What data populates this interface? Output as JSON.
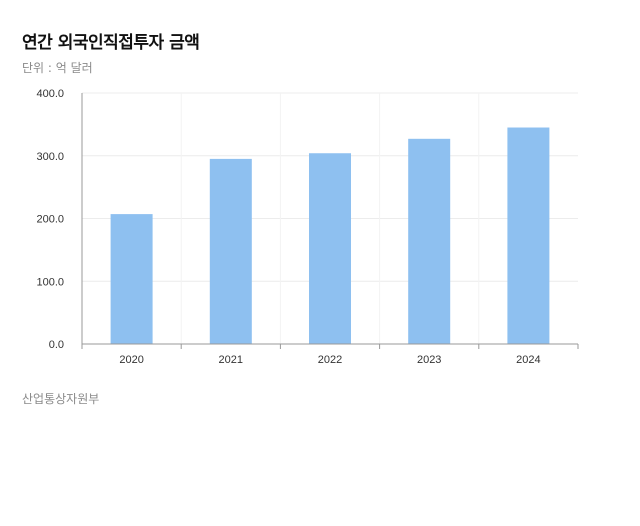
{
  "header": {
    "title": "연간 외국인직접투자 금액",
    "unit": "단위 : 억 달러"
  },
  "footer": {
    "source": "산업통상자원부"
  },
  "chart_data": {
    "type": "bar",
    "title": "연간 외국인직접투자 금액",
    "categories": [
      "2020",
      "2021",
      "2022",
      "2023",
      "2024"
    ],
    "values": [
      207,
      295,
      304,
      327,
      345
    ],
    "ylim": [
      0,
      400
    ],
    "yticks": [
      "0.0",
      "100.0",
      "200.0",
      "300.0",
      "400.0"
    ],
    "grid": true,
    "bar_color": "#8ec0f0"
  }
}
